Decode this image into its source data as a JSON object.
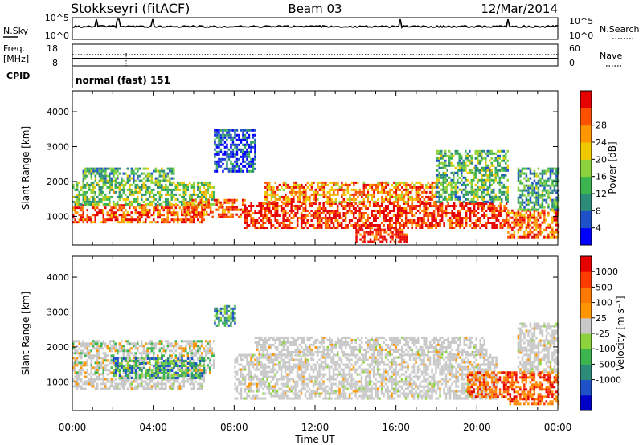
{
  "header": {
    "station": "Stokkseyri (fitACF)",
    "beam": "Beam 03",
    "date": "12/Mar/2014"
  },
  "top_panels": {
    "nsky_label": "N.Sky",
    "nsearch_label": "N.Search",
    "noise_ticks": [
      "10^5",
      "10^0"
    ],
    "freq_label_line1": "Freq.",
    "freq_label_line2": "[MHz]",
    "freq_ticks": [
      "18",
      "8"
    ],
    "nave_label": "Nave",
    "nave_ticks": [
      "60",
      "0"
    ],
    "cpid_label": "CPID",
    "cpid_value": "normal (fast) 151"
  },
  "chart_data": [
    {
      "type": "heatmap",
      "name": "power",
      "xlabel": "Time UT",
      "ylabel": "Slant Range [km]",
      "xlim": [
        0,
        24
      ],
      "ylim": [
        180,
        4600
      ],
      "x_ticks": [
        "00:00",
        "04:00",
        "08:00",
        "12:00",
        "16:00",
        "20:00",
        "00:00"
      ],
      "y_ticks": [
        1000,
        2000,
        3000,
        4000
      ],
      "colorbar": {
        "label": "Power [dB]",
        "ticks": [
          "4",
          "8",
          "12",
          "16",
          "20",
          "24",
          "28"
        ],
        "colors": [
          "#0000ff",
          "#1e50c8",
          "#2d8c78",
          "#3cb450",
          "#8cd23c",
          "#f0c800",
          "#ff9600",
          "#ff5000",
          "#e60000"
        ]
      },
      "regions": [
        {
          "t0": 0.0,
          "t1": 6.5,
          "r0": 800,
          "r1": 1350,
          "level": 0.85
        },
        {
          "t0": 0.0,
          "t1": 7.0,
          "r0": 1350,
          "r1": 2000,
          "level": 0.45
        },
        {
          "t0": 0.5,
          "t1": 5.0,
          "r0": 2000,
          "r1": 2400,
          "level": 0.35
        },
        {
          "t0": 5.5,
          "t1": 8.5,
          "r0": 1000,
          "r1": 1500,
          "level": 0.8
        },
        {
          "t0": 7.0,
          "t1": 9.0,
          "r0": 2300,
          "r1": 3500,
          "level": 0.15
        },
        {
          "t0": 8.5,
          "t1": 21.5,
          "r0": 700,
          "r1": 1400,
          "level": 0.92
        },
        {
          "t0": 9.5,
          "t1": 18.0,
          "r0": 1400,
          "r1": 2000,
          "level": 0.75
        },
        {
          "t0": 14.0,
          "t1": 16.5,
          "r0": 300,
          "r1": 650,
          "level": 0.95
        },
        {
          "t0": 18.0,
          "t1": 21.5,
          "r0": 1400,
          "r1": 2900,
          "level": 0.4
        },
        {
          "t0": 21.5,
          "t1": 24.0,
          "r0": 400,
          "r1": 1200,
          "level": 0.8
        },
        {
          "t0": 22.0,
          "t1": 24.0,
          "r0": 1200,
          "r1": 2400,
          "level": 0.35
        }
      ]
    },
    {
      "type": "heatmap",
      "name": "velocity",
      "xlabel": "Time UT",
      "ylabel": "Slant Range [km]",
      "xlim": [
        0,
        24
      ],
      "ylim": [
        180,
        4600
      ],
      "x_ticks": [
        "00:00",
        "04:00",
        "08:00",
        "12:00",
        "16:00",
        "20:00",
        "00:00"
      ],
      "y_ticks": [
        1000,
        2000,
        3000,
        4000
      ],
      "colorbar": {
        "label": "Velocity [m s⁻¹]",
        "ticks": [
          "1000",
          "500",
          "100",
          "25",
          "-25",
          "-100",
          "-500",
          "-1000"
        ],
        "colors": [
          "#0000c8",
          "#1e50c8",
          "#2d8c78",
          "#3cb450",
          "#8cd23c",
          "#c8c8c8",
          "#ff9600",
          "#ff7800",
          "#ff3c00",
          "#e60000"
        ]
      },
      "regions": [
        {
          "t0": 0.0,
          "t1": 6.5,
          "r0": 800,
          "r1": 1250,
          "kind": "ground"
        },
        {
          "t0": 0.0,
          "t1": 7.0,
          "r0": 1250,
          "r1": 2200,
          "kind": "mixed"
        },
        {
          "t0": 2.0,
          "t1": 6.5,
          "r0": 1100,
          "r1": 1700,
          "kind": "positive"
        },
        {
          "t0": 7.0,
          "t1": 8.0,
          "r0": 2600,
          "r1": 3200,
          "kind": "positive"
        },
        {
          "t0": 8.0,
          "t1": 21.0,
          "r0": 500,
          "r1": 1800,
          "kind": "ground"
        },
        {
          "t0": 9.0,
          "t1": 20.5,
          "r0": 1800,
          "r1": 2300,
          "kind": "ground"
        },
        {
          "t0": 19.5,
          "t1": 21.5,
          "r0": 600,
          "r1": 1300,
          "kind": "negative"
        },
        {
          "t0": 21.5,
          "t1": 24.0,
          "r0": 400,
          "r1": 1300,
          "kind": "negative"
        },
        {
          "t0": 22.0,
          "t1": 24.0,
          "r0": 1300,
          "r1": 2700,
          "kind": "ground"
        }
      ]
    }
  ]
}
